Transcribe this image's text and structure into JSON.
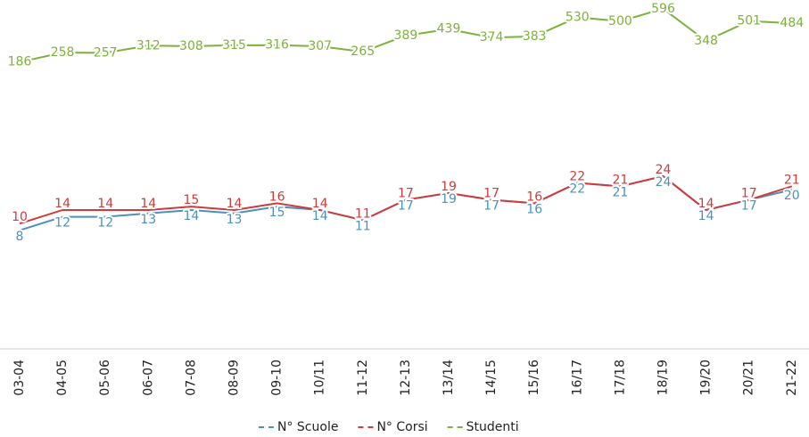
{
  "chart_data": {
    "type": "line",
    "categories": [
      "03-04",
      "04-05",
      "05-06",
      "06-07",
      "07-08",
      "08-09",
      "09-10",
      "10/11",
      "11-12",
      "12-13",
      "13/14",
      "14/15",
      "15/16",
      "16/17",
      "17/18",
      "18/19",
      "19/20",
      "20/21",
      "21-22"
    ],
    "series": [
      {
        "name": "N° Scuole",
        "color": "#4a90c0",
        "values": [
          8,
          12,
          12,
          13,
          14,
          13,
          15,
          14,
          11,
          17,
          19,
          17,
          16,
          22,
          21,
          24,
          14,
          17,
          20
        ]
      },
      {
        "name": "N° Corsi",
        "color": "#d03a3a",
        "values": [
          10,
          14,
          14,
          14,
          15,
          14,
          16,
          14,
          11,
          17,
          19,
          17,
          16,
          22,
          21,
          24,
          14,
          17,
          21
        ]
      },
      {
        "name": "Studenti",
        "color": "#7ab23a",
        "axis": "y2",
        "values": [
          186,
          258,
          257,
          312,
          308,
          315,
          316,
          307,
          265,
          389,
          439,
          374,
          383,
          530,
          500,
          596,
          348,
          501,
          484
        ]
      }
    ],
    "ylim": [
      -27,
      76
    ],
    "y2lim": [
      -2020,
      663
    ]
  }
}
